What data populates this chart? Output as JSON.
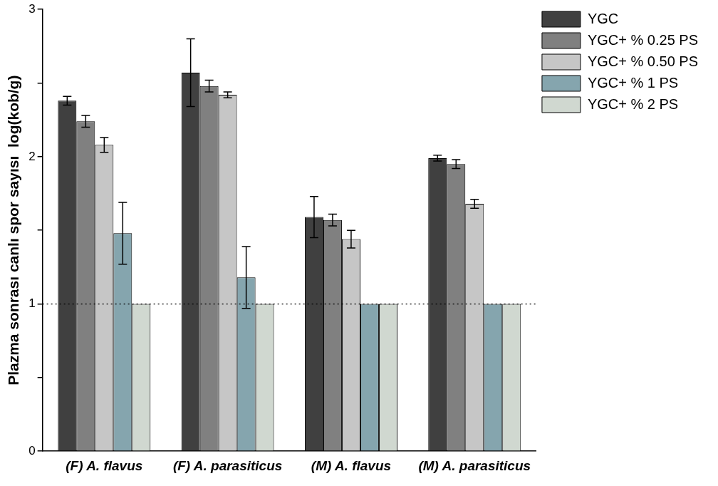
{
  "chart_data": {
    "type": "bar",
    "ylabel": "Plazma sonrası canlı spor sayısı  log(kob/g)",
    "categories": [
      "(F) A. flavus",
      "(F) A. parasiticus",
      "(M) A. flavus",
      "(M) A. parasiticus"
    ],
    "series": [
      {
        "name": "YGC",
        "color": "#404040",
        "values": [
          2.38,
          2.57,
          1.59,
          1.99
        ],
        "errors": [
          0.03,
          0.23,
          0.14,
          0.02
        ]
      },
      {
        "name": "YGC+ % 0.25 PS",
        "color": "#808080",
        "values": [
          2.24,
          2.48,
          1.57,
          1.95
        ],
        "errors": [
          0.04,
          0.04,
          0.04,
          0.03
        ]
      },
      {
        "name": "YGC+ % 0.50 PS",
        "color": "#c6c6c6",
        "values": [
          2.08,
          2.42,
          1.44,
          1.68
        ],
        "errors": [
          0.05,
          0.02,
          0.06,
          0.03
        ]
      },
      {
        "name": "YGC+ % 1 PS",
        "color": "#85a5ae",
        "values": [
          1.48,
          1.18,
          1.0,
          1.0
        ],
        "errors": [
          0.21,
          0.21,
          null,
          null
        ]
      },
      {
        "name": "YGC+ % 2 PS",
        "color": "#d0d8d0",
        "values": [
          1.0,
          1.0,
          1.0,
          1.0
        ]
      }
    ],
    "ylim": [
      0,
      3
    ],
    "yticks": [
      0,
      {
        "value": 0.5,
        "label": null
      },
      1,
      {
        "value": 1.5,
        "label": null
      },
      2,
      {
        "value": 2.5,
        "label": null
      },
      3
    ],
    "ref_lines": [
      {
        "axis": "y",
        "value": 1,
        "line_style": "dotted",
        "color": "#000000"
      }
    ],
    "grid": false,
    "legend": "top right"
  }
}
